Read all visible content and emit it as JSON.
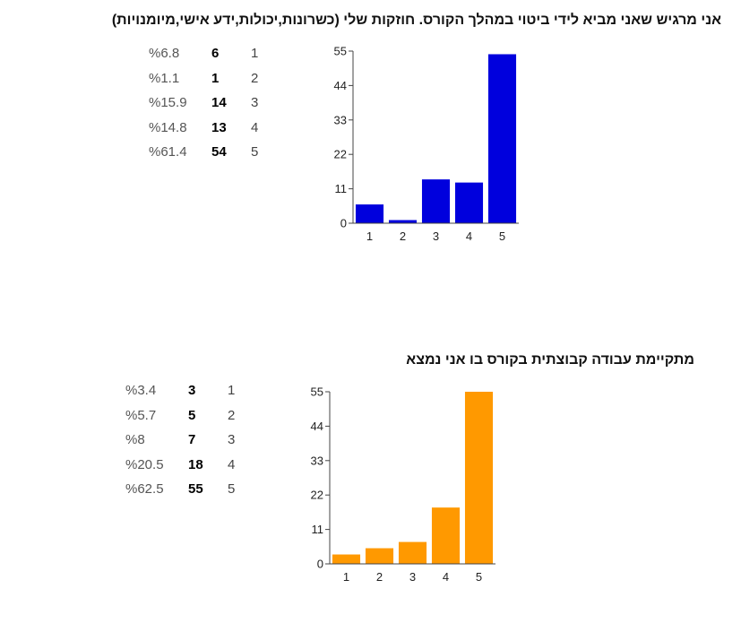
{
  "questions": [
    {
      "title": "אני מרגיש שאני מביא לידי ביטוי במהלך הקורס. חוזקות שלי (כשרונות,יכולות,ידע אישי,מיומנויות)",
      "rows": [
        {
          "option": "1",
          "count": "6",
          "percent": "%6.8"
        },
        {
          "option": "2",
          "count": "1",
          "percent": "%1.1"
        },
        {
          "option": "3",
          "count": "14",
          "percent": "%15.9"
        },
        {
          "option": "4",
          "count": "13",
          "percent": "%14.8"
        },
        {
          "option": "5",
          "count": "54",
          "percent": "%61.4"
        }
      ]
    },
    {
      "title": "מתקיימת עבודה קבוצתית בקורס בו אני נמצא",
      "rows": [
        {
          "option": "1",
          "count": "3",
          "percent": "%3.4"
        },
        {
          "option": "2",
          "count": "5",
          "percent": "%5.7"
        },
        {
          "option": "3",
          "count": "7",
          "percent": "%8"
        },
        {
          "option": "4",
          "count": "18",
          "percent": "%20.5"
        },
        {
          "option": "5",
          "count": "55",
          "percent": "%62.5"
        }
      ]
    }
  ],
  "chart_data": [
    {
      "type": "bar",
      "categories": [
        "1",
        "2",
        "3",
        "4",
        "5"
      ],
      "values": [
        6,
        1,
        14,
        13,
        54
      ],
      "ylim": [
        0,
        55
      ],
      "yticks": [
        0,
        11,
        22,
        33,
        44,
        55
      ],
      "color": "#0000dd",
      "grid": false
    },
    {
      "type": "bar",
      "categories": [
        "1",
        "2",
        "3",
        "4",
        "5"
      ],
      "values": [
        3,
        5,
        7,
        18,
        55
      ],
      "ylim": [
        0,
        55
      ],
      "yticks": [
        0,
        11,
        22,
        33,
        44,
        55
      ],
      "color": "#ff9900",
      "grid": false
    }
  ]
}
